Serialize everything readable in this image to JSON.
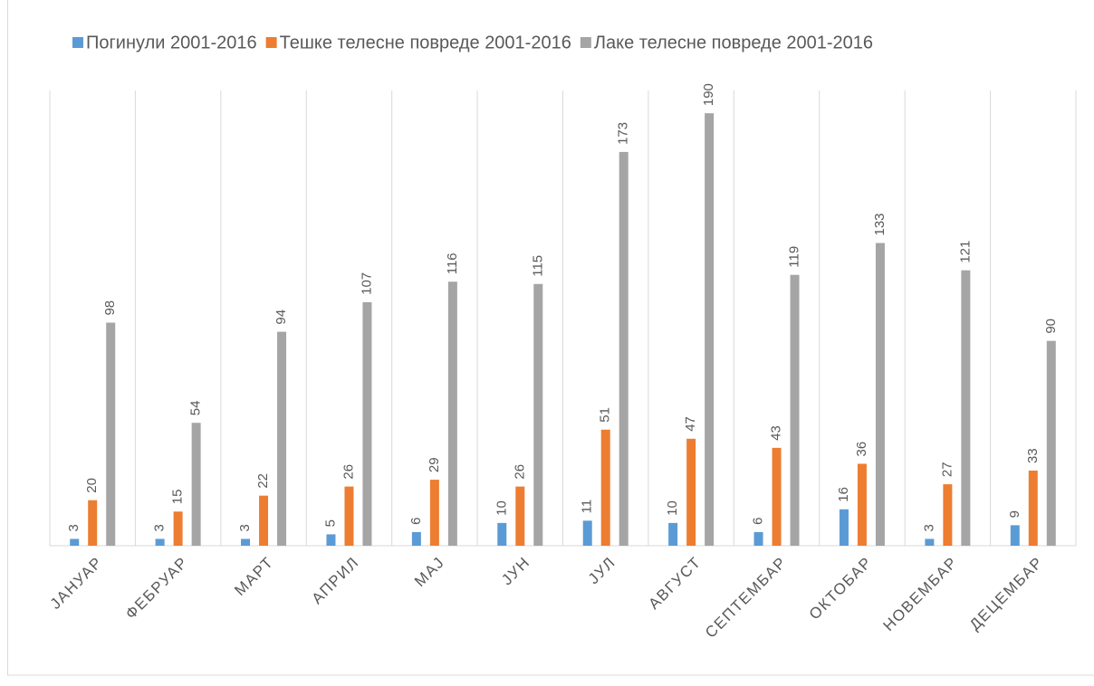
{
  "chart_data": {
    "type": "bar",
    "categories": [
      "ЈАНУАР",
      "ФЕБРУАР",
      "МАРТ",
      "АПРИЛ",
      "МАЈ",
      "ЈУН",
      "ЈУЛ",
      "АВГУСТ",
      "СЕПТЕМБАР",
      "ОКТОБАР",
      "НОВЕМБАР",
      "ДЕЦЕМБАР"
    ],
    "series": [
      {
        "name": "Погинули 2001-2016",
        "color": "#5b9bd5",
        "values": [
          3,
          3,
          3,
          5,
          6,
          10,
          11,
          10,
          6,
          16,
          3,
          9
        ]
      },
      {
        "name": "Тешке телесне повреде 2001-2016",
        "color": "#ed7d31",
        "values": [
          20,
          15,
          22,
          26,
          29,
          26,
          51,
          47,
          43,
          36,
          27,
          33
        ]
      },
      {
        "name": "Лаке телесне повреде 2001-2016",
        "color": "#a5a5a5",
        "values": [
          98,
          54,
          94,
          107,
          116,
          115,
          173,
          190,
          119,
          133,
          121,
          90
        ]
      }
    ],
    "ylim": [
      0,
      200
    ],
    "legend": "top"
  }
}
